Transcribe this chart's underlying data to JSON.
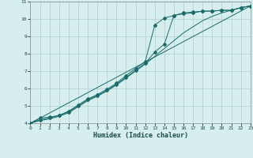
{
  "xlabel": "Humidex (Indice chaleur)",
  "bg_color": "#d6eeed",
  "grid_color": "#b0cece",
  "line_color": "#1a6b6b",
  "xlim": [
    0,
    23
  ],
  "ylim": [
    4,
    11
  ],
  "xticks": [
    0,
    1,
    2,
    3,
    4,
    5,
    6,
    7,
    8,
    9,
    10,
    11,
    12,
    13,
    14,
    15,
    16,
    17,
    18,
    19,
    20,
    21,
    22,
    23
  ],
  "yticks": [
    4,
    5,
    6,
    7,
    8,
    9,
    10,
    11
  ],
  "line1_x": [
    0,
    1,
    2,
    3,
    4,
    5,
    6,
    7,
    8,
    9,
    10,
    11,
    12,
    13,
    14,
    15,
    16,
    17,
    18,
    19,
    20,
    21,
    22,
    23
  ],
  "line1_y": [
    4.0,
    4.3,
    4.35,
    4.45,
    4.7,
    5.05,
    5.4,
    5.65,
    5.95,
    6.3,
    6.75,
    7.15,
    7.55,
    9.65,
    10.05,
    10.2,
    10.35,
    10.4,
    10.45,
    10.45,
    10.5,
    10.5,
    10.65,
    10.75
  ],
  "line2_x": [
    0,
    1,
    2,
    3,
    4,
    5,
    6,
    7,
    8,
    9,
    10,
    11,
    12,
    13,
    14,
    15,
    16,
    17,
    18,
    19,
    20,
    21,
    22,
    23
  ],
  "line2_y": [
    4.0,
    4.2,
    4.3,
    4.45,
    4.65,
    5.0,
    5.35,
    5.6,
    5.9,
    6.25,
    6.65,
    7.05,
    7.45,
    8.1,
    8.55,
    10.2,
    10.3,
    10.35,
    10.45,
    10.45,
    10.5,
    10.5,
    10.65,
    10.75
  ],
  "line3_x": [
    0,
    1,
    2,
    3,
    4,
    5,
    6,
    7,
    8,
    9,
    10,
    11,
    12,
    13,
    14,
    15,
    16,
    17,
    18,
    19,
    20,
    21,
    22,
    23
  ],
  "line3_y": [
    4.0,
    4.15,
    4.25,
    4.4,
    4.6,
    4.95,
    5.3,
    5.55,
    5.85,
    6.2,
    6.6,
    7.0,
    7.4,
    7.85,
    8.3,
    8.75,
    9.2,
    9.55,
    9.9,
    10.15,
    10.35,
    10.5,
    10.65,
    10.75
  ],
  "line4_x": [
    0,
    23
  ],
  "line4_y": [
    4.0,
    10.75
  ]
}
